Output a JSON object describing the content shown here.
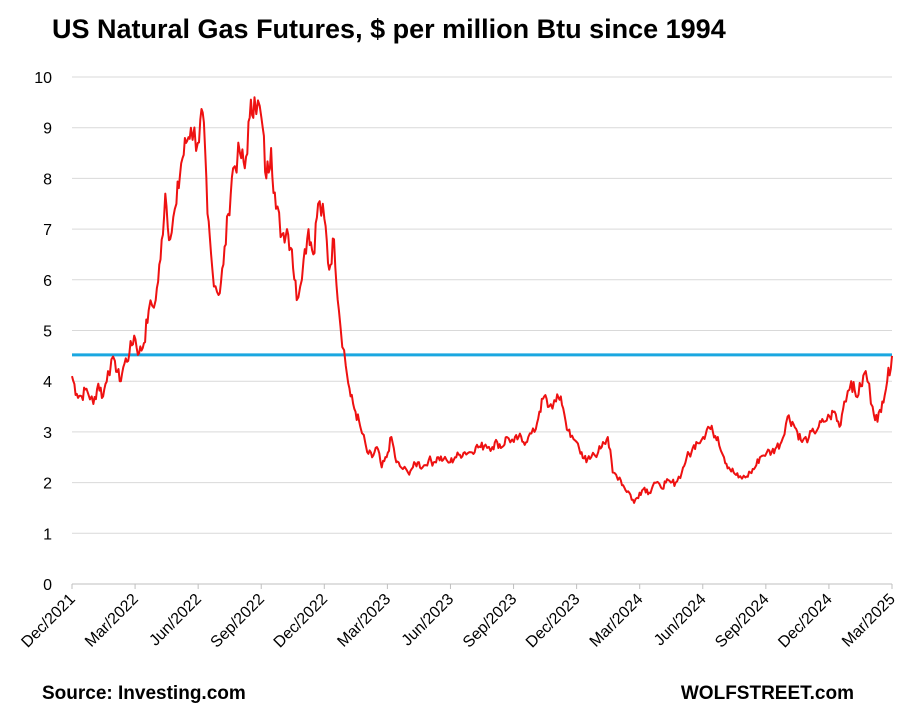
{
  "title": "US Natural Gas Futures, $ per million Btu since 1994",
  "source": "Source: Investing.com",
  "brand": "WOLFSTREET.com",
  "colors": {
    "series": "#ee1111",
    "reference": "#1aa7e0",
    "grid": "#d9d9d9"
  },
  "chart_data": {
    "type": "line",
    "title": "US Natural Gas Futures, $ per million Btu since 1994",
    "xlabel": "",
    "ylabel": "",
    "ylim": [
      0,
      10
    ],
    "yticks": [
      0,
      1,
      2,
      3,
      4,
      5,
      6,
      7,
      8,
      9,
      10
    ],
    "xlim": [
      "2021-12",
      "2025-03"
    ],
    "xticks": [
      "Dec/2021",
      "Mar/2022",
      "Jun/2022",
      "Sep/2022",
      "Dec/2022",
      "Mar/2023",
      "Jun/2023",
      "Sep/2023",
      "Dec/2023",
      "Mar/2024",
      "Jun/2024",
      "Sep/2024",
      "Dec/2024",
      "Mar/2025"
    ],
    "grid": true,
    "reference_line": {
      "y": 4.52
    },
    "series": [
      {
        "x": [
          "2021-12-01",
          "2021-12-08",
          "2021-12-15",
          "2021-12-22",
          "2022-01-01",
          "2022-01-08",
          "2022-01-15",
          "2022-01-22",
          "2022-02-01",
          "2022-02-08",
          "2022-02-15",
          "2022-02-22",
          "2022-03-01",
          "2022-03-08",
          "2022-03-15",
          "2022-03-22",
          "2022-04-01",
          "2022-04-08",
          "2022-04-15",
          "2022-04-22",
          "2022-05-01",
          "2022-05-08",
          "2022-05-15",
          "2022-05-22",
          "2022-06-01",
          "2022-06-08",
          "2022-06-15",
          "2022-06-22",
          "2022-07-01",
          "2022-07-08",
          "2022-07-15",
          "2022-07-22",
          "2022-08-01",
          "2022-08-08",
          "2022-08-15",
          "2022-08-22",
          "2022-09-01",
          "2022-09-08",
          "2022-09-15",
          "2022-09-22",
          "2022-10-01",
          "2022-10-08",
          "2022-10-15",
          "2022-10-22",
          "2022-11-01",
          "2022-11-08",
          "2022-11-15",
          "2022-11-22",
          "2022-12-01",
          "2022-12-08",
          "2022-12-15",
          "2022-12-22",
          "2023-01-01",
          "2023-01-08",
          "2023-01-15",
          "2023-01-22",
          "2023-02-01",
          "2023-02-08",
          "2023-02-15",
          "2023-02-22",
          "2023-03-01",
          "2023-03-08",
          "2023-03-15",
          "2023-03-22",
          "2023-04-01",
          "2023-04-08",
          "2023-04-15",
          "2023-04-22",
          "2023-05-01",
          "2023-05-08",
          "2023-05-15",
          "2023-05-22",
          "2023-06-01",
          "2023-06-08",
          "2023-06-15",
          "2023-06-22",
          "2023-07-01",
          "2023-07-08",
          "2023-07-15",
          "2023-07-22",
          "2023-08-01",
          "2023-08-08",
          "2023-08-15",
          "2023-08-22",
          "2023-09-01",
          "2023-09-08",
          "2023-09-15",
          "2023-09-22",
          "2023-10-01",
          "2023-10-08",
          "2023-10-15",
          "2023-10-22",
          "2023-11-01",
          "2023-11-08",
          "2023-11-15",
          "2023-11-22",
          "2023-12-01",
          "2023-12-08",
          "2023-12-15",
          "2023-12-22",
          "2024-01-01",
          "2024-01-08",
          "2024-01-15",
          "2024-01-22",
          "2024-02-01",
          "2024-02-08",
          "2024-02-15",
          "2024-02-22",
          "2024-03-01",
          "2024-03-08",
          "2024-03-15",
          "2024-03-22",
          "2024-04-01",
          "2024-04-08",
          "2024-04-15",
          "2024-04-22",
          "2024-05-01",
          "2024-05-08",
          "2024-05-15",
          "2024-05-22",
          "2024-06-01",
          "2024-06-08",
          "2024-06-15",
          "2024-06-22",
          "2024-07-01",
          "2024-07-08",
          "2024-07-15",
          "2024-07-22",
          "2024-08-01",
          "2024-08-08",
          "2024-08-15",
          "2024-08-22",
          "2024-09-01",
          "2024-09-08",
          "2024-09-15",
          "2024-09-22",
          "2024-10-01",
          "2024-10-08",
          "2024-10-15",
          "2024-10-22",
          "2024-11-01",
          "2024-11-08",
          "2024-11-15",
          "2024-11-22",
          "2024-12-01",
          "2024-12-08",
          "2024-12-15",
          "2024-12-22",
          "2025-01-01",
          "2025-01-08",
          "2025-01-15",
          "2025-01-22",
          "2025-02-01",
          "2025-02-08",
          "2025-02-15",
          "2025-02-22",
          "2025-03-01"
        ],
        "values": [
          4.1,
          3.75,
          3.7,
          3.85,
          3.55,
          3.95,
          3.7,
          4.2,
          4.4,
          4.0,
          4.35,
          4.55,
          4.9,
          4.55,
          4.75,
          5.4,
          5.6,
          6.4,
          7.7,
          6.8,
          7.5,
          8.3,
          8.7,
          9.0,
          8.7,
          9.3,
          7.3,
          6.2,
          5.7,
          6.3,
          7.3,
          8.2,
          8.5,
          8.2,
          9.2,
          9.6,
          9.2,
          8.0,
          8.6,
          7.4,
          6.9,
          7.0,
          6.6,
          5.6,
          6.4,
          7.0,
          6.5,
          7.5,
          7.2,
          6.2,
          6.8,
          5.4,
          4.3,
          3.7,
          3.4,
          3.1,
          2.6,
          2.5,
          2.7,
          2.3,
          2.5,
          2.9,
          2.4,
          2.3,
          2.2,
          2.3,
          2.4,
          2.3,
          2.45,
          2.4,
          2.5,
          2.45,
          2.4,
          2.5,
          2.55,
          2.6,
          2.6,
          2.7,
          2.7,
          2.75,
          2.7,
          2.8,
          2.7,
          2.9,
          2.8,
          2.9,
          2.8,
          2.9,
          3.0,
          3.4,
          3.7,
          3.5,
          3.6,
          3.7,
          3.2,
          2.9,
          2.8,
          2.6,
          2.4,
          2.5,
          2.6,
          2.8,
          2.9,
          2.2,
          2.1,
          1.9,
          1.8,
          1.6,
          1.8,
          1.9,
          1.8,
          2.0,
          1.9,
          2.0,
          2.0,
          2.0,
          2.2,
          2.5,
          2.6,
          2.8,
          2.9,
          3.1,
          3.0,
          2.9,
          2.5,
          2.3,
          2.2,
          2.1,
          2.1,
          2.2,
          2.3,
          2.5,
          2.6,
          2.6,
          2.7,
          2.8,
          3.3,
          3.2,
          3.0,
          2.8,
          2.9,
          3.0,
          3.1,
          3.2,
          3.3,
          3.4,
          3.1,
          3.6,
          4.0,
          3.7,
          3.9,
          4.2,
          3.5,
          3.2,
          3.6,
          4.0,
          4.5
        ]
      }
    ]
  }
}
